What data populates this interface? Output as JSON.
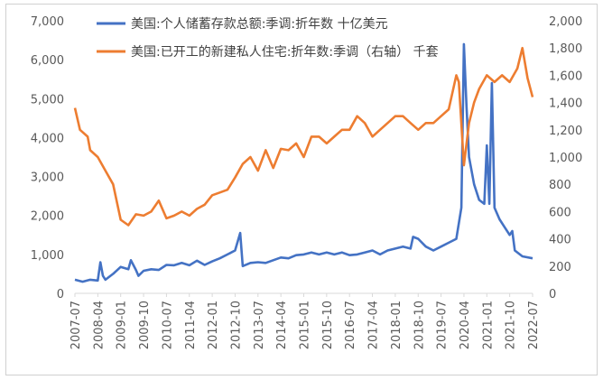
{
  "chart_data": {
    "type": "line",
    "title": "",
    "legend_position": "top",
    "grid": false,
    "x_tick_labels": [
      "2007-07",
      "2008-04",
      "2009-01",
      "2009-10",
      "2010-07",
      "2011-04",
      "2012-01",
      "2012-10",
      "2013-07",
      "2014-04",
      "2015-01",
      "2015-10",
      "2016-07",
      "2017-04",
      "2018-01",
      "2018-10",
      "2019-07",
      "2020-04",
      "2021-01",
      "2021-10",
      "2022-07"
    ],
    "y_left": {
      "ylim": [
        0,
        7000
      ],
      "tick_labels": [
        "0",
        "1,000",
        "2,000",
        "3,000",
        "4,000",
        "5,000",
        "6,000",
        "7,000"
      ]
    },
    "y_right": {
      "ylim": [
        0,
        2000
      ],
      "tick_labels": [
        "0",
        "200",
        "400",
        "600",
        "800",
        "1,000",
        "1,200",
        "1,400",
        "1,600",
        "1,800",
        "2,000"
      ]
    },
    "series": [
      {
        "name": "美国:个人储蓄存款总额:季调:折年数 十亿美元",
        "axis": "left",
        "color": "#4472C4",
        "points": [
          [
            "2007-07",
            350
          ],
          [
            "2007-10",
            300
          ],
          [
            "2008-01",
            350
          ],
          [
            "2008-04",
            330
          ],
          [
            "2008-05",
            800
          ],
          [
            "2008-06",
            450
          ],
          [
            "2008-07",
            350
          ],
          [
            "2008-10",
            500
          ],
          [
            "2009-01",
            680
          ],
          [
            "2009-04",
            620
          ],
          [
            "2009-05",
            850
          ],
          [
            "2009-07",
            600
          ],
          [
            "2009-08",
            450
          ],
          [
            "2009-10",
            580
          ],
          [
            "2010-01",
            620
          ],
          [
            "2010-04",
            600
          ],
          [
            "2010-07",
            730
          ],
          [
            "2010-10",
            720
          ],
          [
            "2011-01",
            780
          ],
          [
            "2011-04",
            720
          ],
          [
            "2011-07",
            840
          ],
          [
            "2011-10",
            730
          ],
          [
            "2012-01",
            820
          ],
          [
            "2012-04",
            900
          ],
          [
            "2012-07",
            1000
          ],
          [
            "2012-10",
            1100
          ],
          [
            "2012-12",
            1550
          ],
          [
            "2013-01",
            700
          ],
          [
            "2013-04",
            780
          ],
          [
            "2013-07",
            800
          ],
          [
            "2013-10",
            780
          ],
          [
            "2014-01",
            850
          ],
          [
            "2014-04",
            920
          ],
          [
            "2014-07",
            900
          ],
          [
            "2014-10",
            980
          ],
          [
            "2015-01",
            1000
          ],
          [
            "2015-04",
            1050
          ],
          [
            "2015-07",
            1000
          ],
          [
            "2015-10",
            1050
          ],
          [
            "2016-01",
            1000
          ],
          [
            "2016-04",
            1050
          ],
          [
            "2016-07",
            980
          ],
          [
            "2016-10",
            1000
          ],
          [
            "2017-01",
            1050
          ],
          [
            "2017-04",
            1100
          ],
          [
            "2017-07",
            1000
          ],
          [
            "2017-10",
            1100
          ],
          [
            "2018-01",
            1150
          ],
          [
            "2018-04",
            1200
          ],
          [
            "2018-07",
            1150
          ],
          [
            "2018-08",
            1450
          ],
          [
            "2018-10",
            1400
          ],
          [
            "2019-01",
            1200
          ],
          [
            "2019-04",
            1100
          ],
          [
            "2019-07",
            1200
          ],
          [
            "2019-10",
            1300
          ],
          [
            "2020-01",
            1400
          ],
          [
            "2020-03",
            2200
          ],
          [
            "2020-04",
            6400
          ],
          [
            "2020-05",
            4800
          ],
          [
            "2020-06",
            3500
          ],
          [
            "2020-08",
            2800
          ],
          [
            "2020-10",
            2400
          ],
          [
            "2020-12",
            2300
          ],
          [
            "2021-01",
            3800
          ],
          [
            "2021-02",
            2300
          ],
          [
            "2021-03",
            5400
          ],
          [
            "2021-04",
            2200
          ],
          [
            "2021-06",
            1900
          ],
          [
            "2021-08",
            1700
          ],
          [
            "2021-10",
            1500
          ],
          [
            "2021-11",
            1600
          ],
          [
            "2021-12",
            1100
          ],
          [
            "2022-03",
            950
          ],
          [
            "2022-07",
            900
          ]
        ]
      },
      {
        "name": "美国:已开工的新建私人住宅:折年数:季调（右轴） 千套",
        "axis": "right",
        "color": "#ED7D31",
        "points": [
          [
            "2007-07",
            1360
          ],
          [
            "2007-09",
            1200
          ],
          [
            "2007-12",
            1150
          ],
          [
            "2008-01",
            1050
          ],
          [
            "2008-04",
            1000
          ],
          [
            "2008-07",
            900
          ],
          [
            "2008-10",
            800
          ],
          [
            "2009-01",
            540
          ],
          [
            "2009-04",
            500
          ],
          [
            "2009-07",
            580
          ],
          [
            "2009-10",
            570
          ],
          [
            "2010-01",
            600
          ],
          [
            "2010-04",
            680
          ],
          [
            "2010-07",
            550
          ],
          [
            "2010-10",
            570
          ],
          [
            "2011-01",
            600
          ],
          [
            "2011-04",
            570
          ],
          [
            "2011-07",
            620
          ],
          [
            "2011-10",
            650
          ],
          [
            "2012-01",
            720
          ],
          [
            "2012-04",
            740
          ],
          [
            "2012-07",
            760
          ],
          [
            "2012-10",
            850
          ],
          [
            "2013-01",
            950
          ],
          [
            "2013-04",
            1000
          ],
          [
            "2013-07",
            900
          ],
          [
            "2013-10",
            1050
          ],
          [
            "2014-01",
            920
          ],
          [
            "2014-04",
            1060
          ],
          [
            "2014-07",
            1050
          ],
          [
            "2014-10",
            1100
          ],
          [
            "2015-01",
            1000
          ],
          [
            "2015-04",
            1150
          ],
          [
            "2015-07",
            1150
          ],
          [
            "2015-10",
            1100
          ],
          [
            "2016-01",
            1150
          ],
          [
            "2016-04",
            1200
          ],
          [
            "2016-07",
            1200
          ],
          [
            "2016-10",
            1300
          ],
          [
            "2017-01",
            1250
          ],
          [
            "2017-04",
            1150
          ],
          [
            "2017-07",
            1200
          ],
          [
            "2017-10",
            1250
          ],
          [
            "2018-01",
            1300
          ],
          [
            "2018-04",
            1300
          ],
          [
            "2018-07",
            1250
          ],
          [
            "2018-10",
            1200
          ],
          [
            "2019-01",
            1250
          ],
          [
            "2019-04",
            1250
          ],
          [
            "2019-07",
            1300
          ],
          [
            "2019-10",
            1350
          ],
          [
            "2020-01",
            1600
          ],
          [
            "2020-02",
            1550
          ],
          [
            "2020-04",
            940
          ],
          [
            "2020-06",
            1250
          ],
          [
            "2020-08",
            1400
          ],
          [
            "2020-10",
            1500
          ],
          [
            "2021-01",
            1600
          ],
          [
            "2021-04",
            1550
          ],
          [
            "2021-07",
            1600
          ],
          [
            "2021-10",
            1550
          ],
          [
            "2022-01",
            1650
          ],
          [
            "2022-03",
            1800
          ],
          [
            "2022-05",
            1580
          ],
          [
            "2022-07",
            1440
          ]
        ]
      }
    ]
  }
}
